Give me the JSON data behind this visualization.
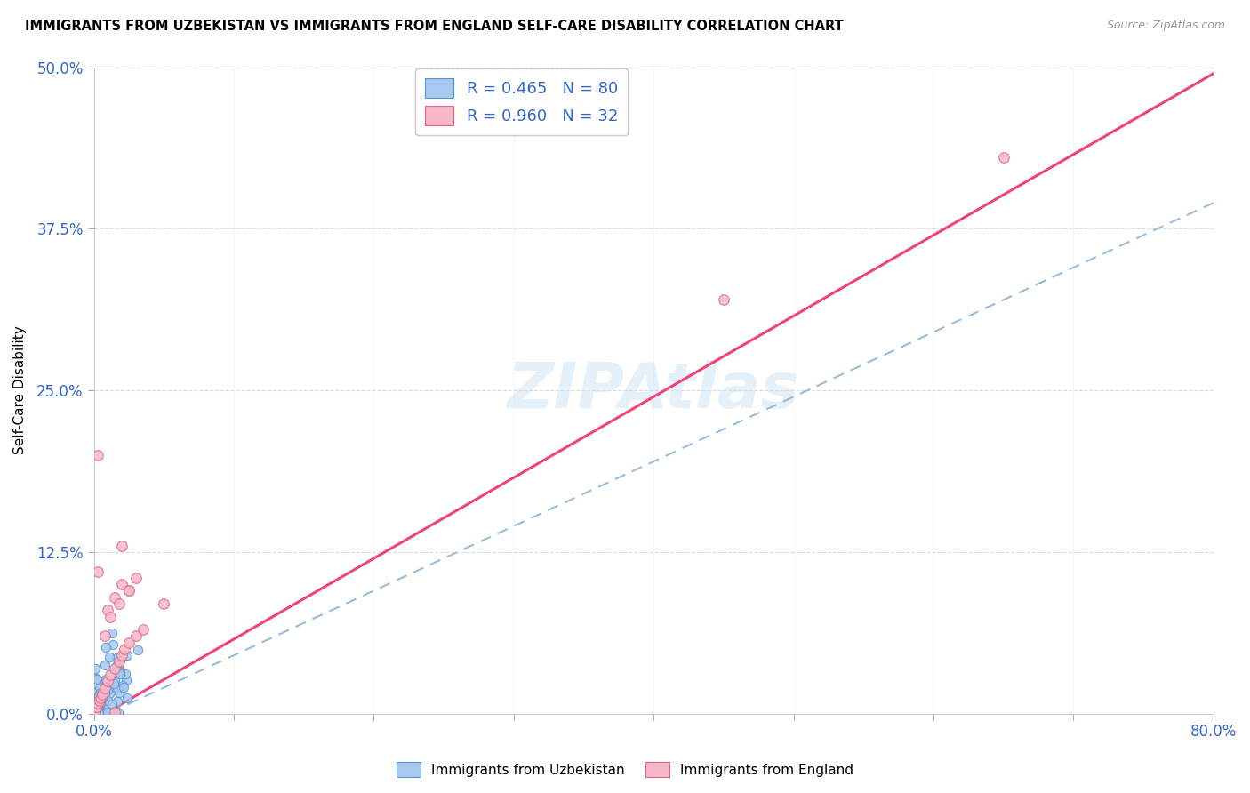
{
  "title": "IMMIGRANTS FROM UZBEKISTAN VS IMMIGRANTS FROM ENGLAND SELF-CARE DISABILITY CORRELATION CHART",
  "source": "Source: ZipAtlas.com",
  "ylabel_label": "Self-Care Disability",
  "xmin": 0.0,
  "xmax": 0.8,
  "ymin": 0.0,
  "ymax": 0.5,
  "legend1_label": "R = 0.465   N = 80",
  "legend2_label": "R = 0.960   N = 32",
  "legend_footer1": "Immigrants from Uzbekistan",
  "legend_footer2": "Immigrants from England",
  "color_uzbekistan": "#a8c8f0",
  "color_uzbekistan_edge": "#5599cc",
  "color_england": "#f8b8c8",
  "color_england_edge": "#dd6688",
  "color_line_england": "#ee4477",
  "color_line_dashed": "#99bbdd",
  "watermark_text": "ZIPAtlas",
  "line_england_slope": 0.625,
  "line_england_intercept": -0.005,
  "line_dashed_slope": 0.5,
  "line_dashed_intercept": -0.005
}
